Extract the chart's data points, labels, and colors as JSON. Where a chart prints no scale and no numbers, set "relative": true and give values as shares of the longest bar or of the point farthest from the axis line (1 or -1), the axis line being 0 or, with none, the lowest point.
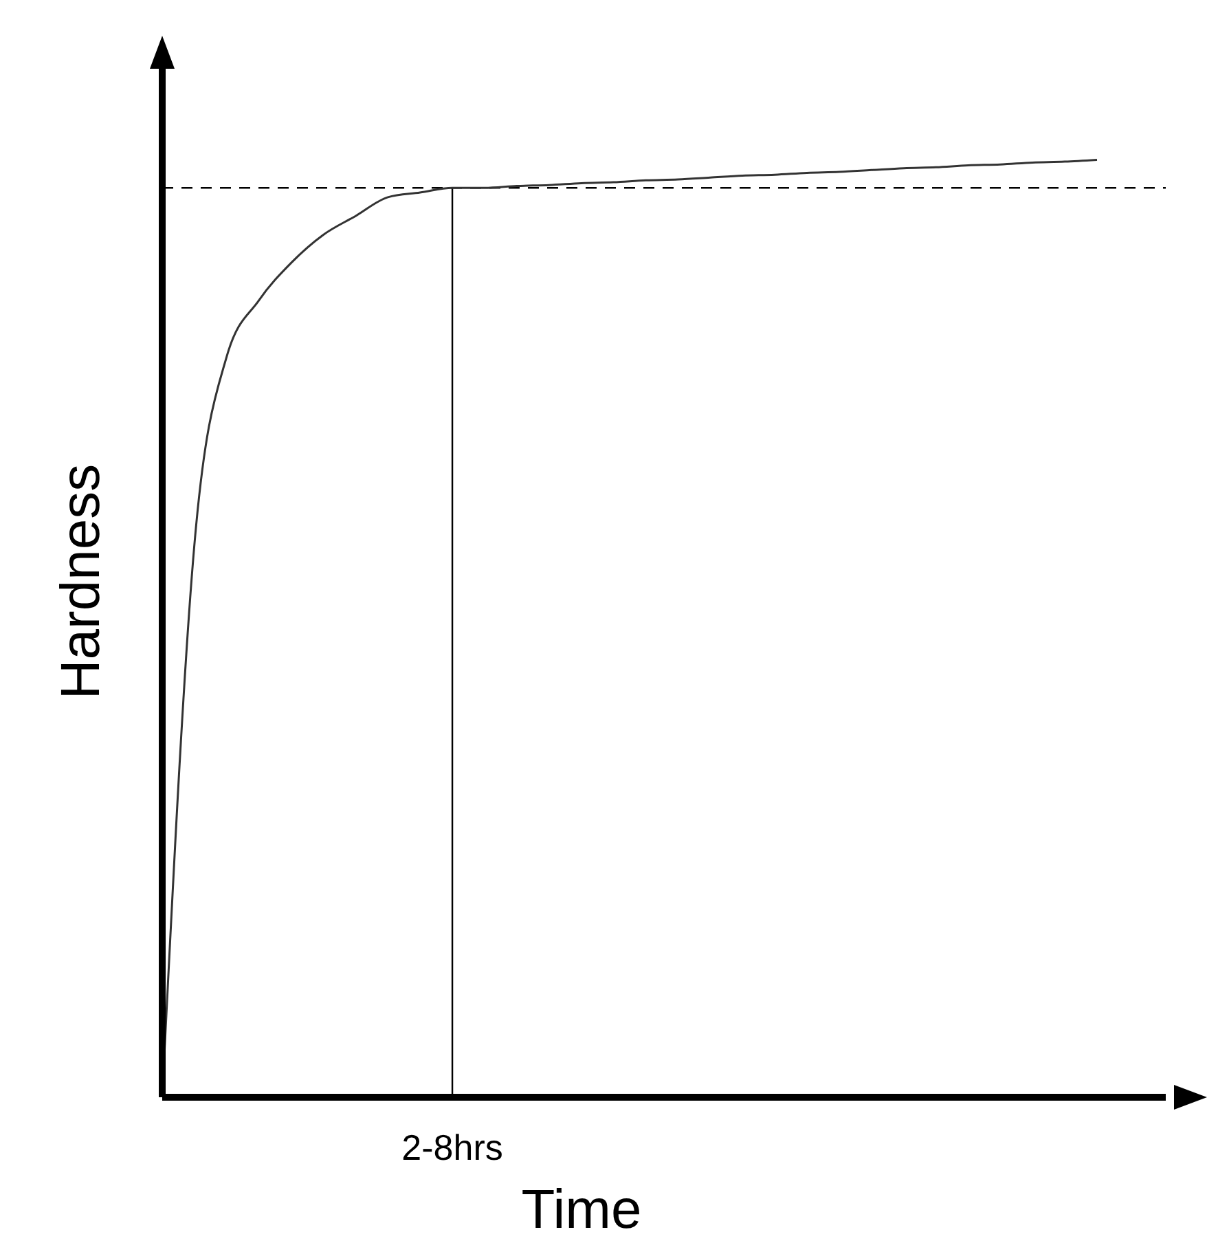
{
  "chart_data": {
    "type": "line",
    "relative": true,
    "xlabel": "Time",
    "ylabel": "Hardness",
    "annotations": [
      "2-8hrs"
    ],
    "categories": [
      null,
      null,
      null,
      null,
      null,
      null,
      null,
      null,
      null,
      null,
      null,
      null,
      null,
      null,
      null,
      null,
      null,
      null,
      null,
      null,
      null,
      null,
      null,
      null,
      null,
      null,
      null,
      null,
      null,
      null
    ],
    "series": [
      {
        "color": "#333333",
        "values": [
          0,
          0.59,
          0.79,
          0.85,
          0.89,
          0.92,
          0.94,
          0.96,
          0.965,
          0.97,
          0.97,
          0.972,
          0.973,
          0.975,
          0.976,
          0.978,
          0.979,
          0.981,
          0.983,
          0.984,
          0.986,
          0.987,
          0.989,
          0.991,
          0.992,
          0.994,
          0.995,
          0.997,
          0.998,
          1
        ]
      }
    ],
    "ref_lines": [
      {
        "axis": "y",
        "value": 0.97,
        "line_style": "dashed",
        "color": "#000000"
      }
    ],
    "marker": "none",
    "line_style": "solid",
    "grid": false,
    "legend": false
  }
}
